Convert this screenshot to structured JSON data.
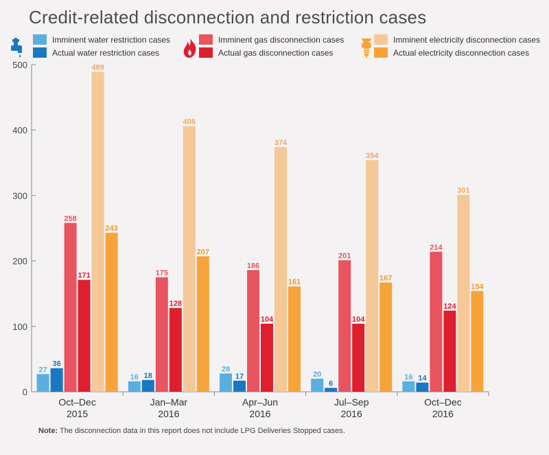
{
  "title": "Credit-related disconnection and restriction cases",
  "legend": {
    "icons": [
      "water-tap-icon",
      "gas-flame-icon",
      "light-bulb-icon"
    ],
    "items": [
      {
        "label": "Imminent water restriction cases",
        "color": "#5aaee0"
      },
      {
        "label": "Actual water restriction cases",
        "color": "#1a78c2"
      },
      {
        "label": "Imminent gas disconnection cases",
        "color": "#e8545f"
      },
      {
        "label": "Actual gas disconnection cases",
        "color": "#dd1f30"
      },
      {
        "label": "Imminent electricity disconnection cases",
        "color": "#f5c897"
      },
      {
        "label": "Actual electricity disconnection cases",
        "color": "#f6a43a"
      }
    ]
  },
  "note": {
    "label": "Note:",
    "text": "The disconnection data in this report does not include LPG Deliveries Stopped cases."
  },
  "chart_data": {
    "type": "bar",
    "title": "Credit-related disconnection and restriction cases",
    "xlabel": "",
    "ylabel": "",
    "ylim": [
      0,
      500
    ],
    "yticks": [
      "0",
      "100",
      "200",
      "300",
      "400",
      "500"
    ],
    "categories": [
      [
        "Oct–Dec",
        "2015"
      ],
      [
        "Jan–Mar",
        "2016"
      ],
      [
        "Apr–Jun",
        "2016"
      ],
      [
        "Jul–Sep",
        "2016"
      ],
      [
        "Oct–Dec",
        "2016"
      ]
    ],
    "series": [
      {
        "name": "Imminent water restriction cases",
        "color": "#5aaee0",
        "label_color": "#5aaee0",
        "values": [
          27,
          16,
          28,
          20,
          16
        ]
      },
      {
        "name": "Actual water restriction cases",
        "color": "#1a78c2",
        "label_color": "#1a78c2",
        "values": [
          36,
          18,
          17,
          6,
          14
        ]
      },
      {
        "name": "Imminent gas disconnection cases",
        "color": "#e8545f",
        "label_color": "#e8545f",
        "values": [
          258,
          175,
          186,
          201,
          214
        ]
      },
      {
        "name": "Actual gas disconnection cases",
        "color": "#dd1f30",
        "label_color": "#dd1f30",
        "values": [
          171,
          128,
          104,
          104,
          124
        ]
      },
      {
        "name": "Imminent electricity disconnection cases",
        "color": "#f5c897",
        "label_color": "#f0a860",
        "values": [
          489,
          406,
          374,
          354,
          301
        ]
      },
      {
        "name": "Actual electricity disconnection cases",
        "color": "#f6a43a",
        "label_color": "#f29a2a",
        "values": [
          243,
          207,
          161,
          167,
          154
        ]
      }
    ]
  }
}
